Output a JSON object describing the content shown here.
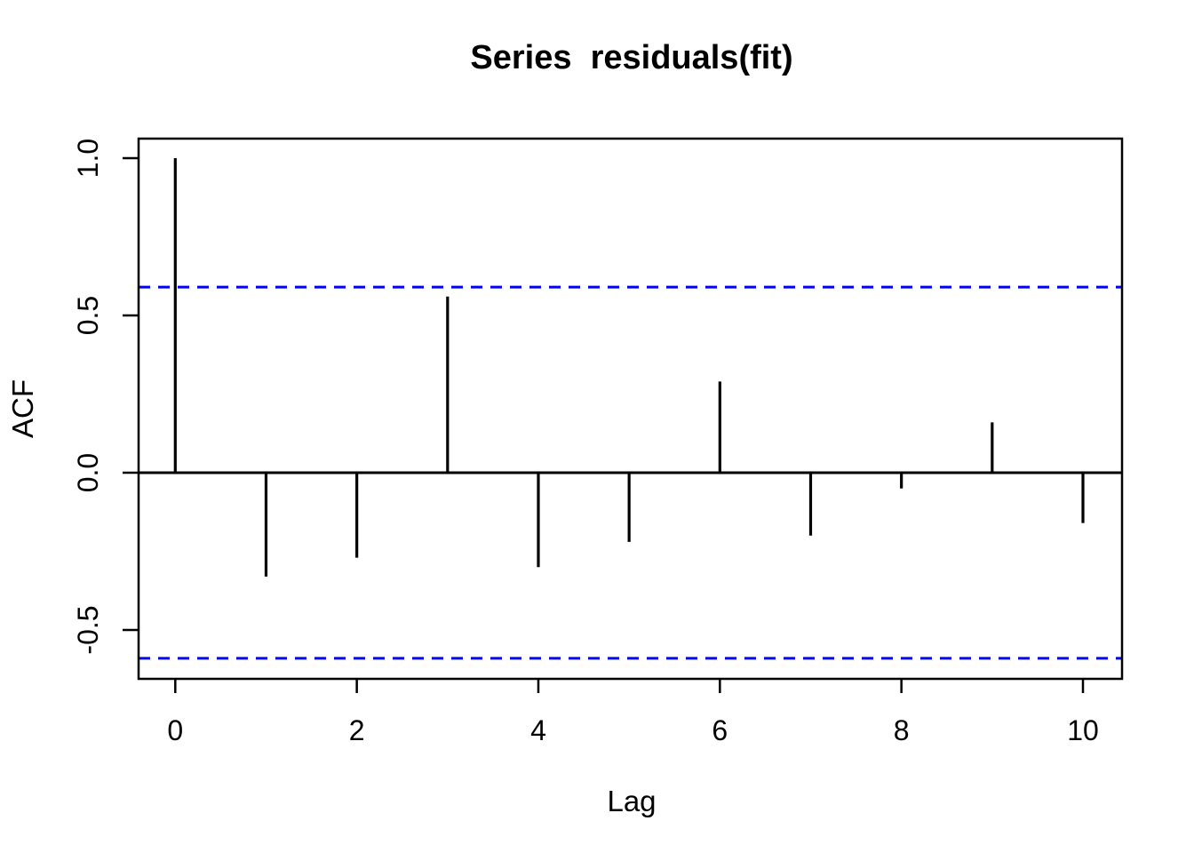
{
  "chart_data": {
    "type": "bar",
    "subtype": "acf-stem-plot",
    "title": "Series  residuals(fit)",
    "xlabel": "Lag",
    "ylabel": "ACF",
    "x": [
      0,
      1,
      2,
      3,
      4,
      5,
      6,
      7,
      8,
      9,
      10
    ],
    "values": [
      1.0,
      -0.33,
      -0.27,
      0.56,
      -0.3,
      -0.22,
      0.29,
      -0.2,
      -0.05,
      0.16,
      -0.16
    ],
    "confidence_bounds": {
      "upper": 0.59,
      "lower": -0.59,
      "line_style": "dashed",
      "color": "#0000FF"
    },
    "xtick_labels": [
      "0",
      "2",
      "4",
      "6",
      "8",
      "10"
    ],
    "xtick_values": [
      0,
      2,
      4,
      6,
      8,
      10
    ],
    "ytick_labels": [
      "1.0",
      "0.5",
      "0.0",
      "-0.5"
    ],
    "ytick_values": [
      1.0,
      0.5,
      0.0,
      -0.5
    ],
    "xlim": [
      -0.4,
      10.43
    ],
    "ylim": [
      -0.67,
      1.06
    ],
    "grid": false,
    "legend": null,
    "zero_line": 0.0,
    "colors": {
      "bar": "#000000",
      "axis": "#000000",
      "background": "#FFFFFF",
      "conf_line": "#0000FF"
    }
  }
}
